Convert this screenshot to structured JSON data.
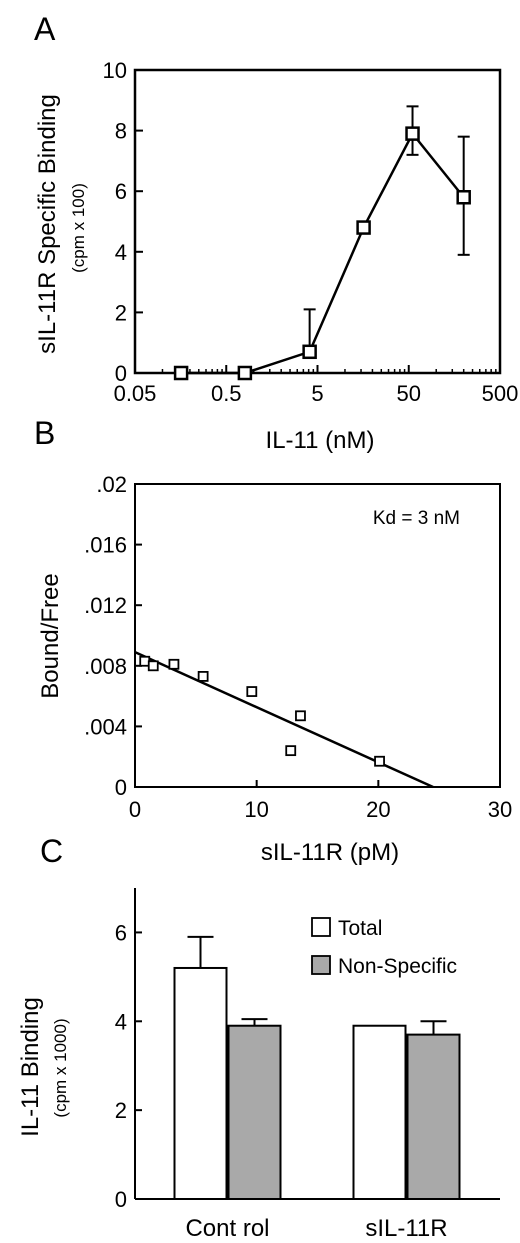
{
  "panels": {
    "a": {
      "letter": "A"
    },
    "b": {
      "letter": "B"
    },
    "c": {
      "letter": "C"
    }
  },
  "chart_data": [
    {
      "id": "A",
      "type": "line",
      "xscale": "log",
      "xlabel": "IL-11   (nM)",
      "ylabel": "sIL-11R    Specific Binding",
      "ylabel_units": "(cpm x 100)",
      "xticks": [
        0.05,
        0.5,
        5,
        50,
        500
      ],
      "xtick_labels": [
        "0.05",
        "0.5",
        "5",
        "50",
        "500"
      ],
      "yticks": [
        0,
        2,
        4,
        6,
        8,
        10
      ],
      "ytick_labels": [
        "0",
        "2",
        "4",
        "6",
        "8",
        "10"
      ],
      "xlim": [
        0.05,
        500
      ],
      "ylim": [
        0,
        10
      ],
      "marker": "open-square",
      "x": [
        0.16,
        0.8,
        4.1,
        16,
        55,
        200
      ],
      "y": [
        0.0,
        0.0,
        0.7,
        4.8,
        7.9,
        5.8
      ],
      "err_plus": [
        0,
        0,
        1.4,
        0,
        0.9,
        2.0
      ],
      "err_minus": [
        0,
        0,
        0,
        0,
        0.7,
        1.9
      ]
    },
    {
      "id": "B",
      "type": "scatter",
      "xlabel": "sIL-11R  (pM)",
      "ylabel": "Bound/Free",
      "xticks": [
        0,
        10,
        20,
        30
      ],
      "xtick_labels": [
        "0",
        "10",
        "20",
        "30"
      ],
      "yticks": [
        0,
        0.004,
        0.008,
        0.012,
        0.016,
        0.02
      ],
      "ytick_labels": [
        "0",
        ".004",
        ".008",
        ".012",
        ".016",
        ".02"
      ],
      "xlim": [
        0,
        30
      ],
      "ylim": [
        0,
        0.02
      ],
      "annotation": "Kd = 3 nM",
      "marker": "open-square",
      "x": [
        0.8,
        1.5,
        3.2,
        5.6,
        9.6,
        12.8,
        13.6,
        20.1
      ],
      "y": [
        0.0083,
        0.008,
        0.0081,
        0.0073,
        0.0063,
        0.0024,
        0.0047,
        0.0017
      ],
      "fit_line": {
        "x": [
          0,
          24.5
        ],
        "y": [
          0.0089,
          0.0
        ]
      }
    },
    {
      "id": "C",
      "type": "bar",
      "ylabel": "IL-11 Binding",
      "ylabel_units": "(cpm x 1000)",
      "categories": [
        "Cont rol",
        "sIL-11R"
      ],
      "yticks": [
        0,
        2,
        4,
        6
      ],
      "ytick_labels": [
        "0",
        "2",
        "4",
        "6"
      ],
      "ylim": [
        0,
        7
      ],
      "legend_position": "top-right",
      "series": [
        {
          "name": "Total",
          "color": "#ffffff",
          "values": [
            5.2,
            3.9
          ],
          "err": [
            0.7,
            0
          ]
        },
        {
          "name": "Non-Specific",
          "color": "#a9a9a9",
          "values": [
            3.9,
            3.7
          ],
          "err": [
            0.15,
            0.3
          ]
        }
      ]
    }
  ]
}
